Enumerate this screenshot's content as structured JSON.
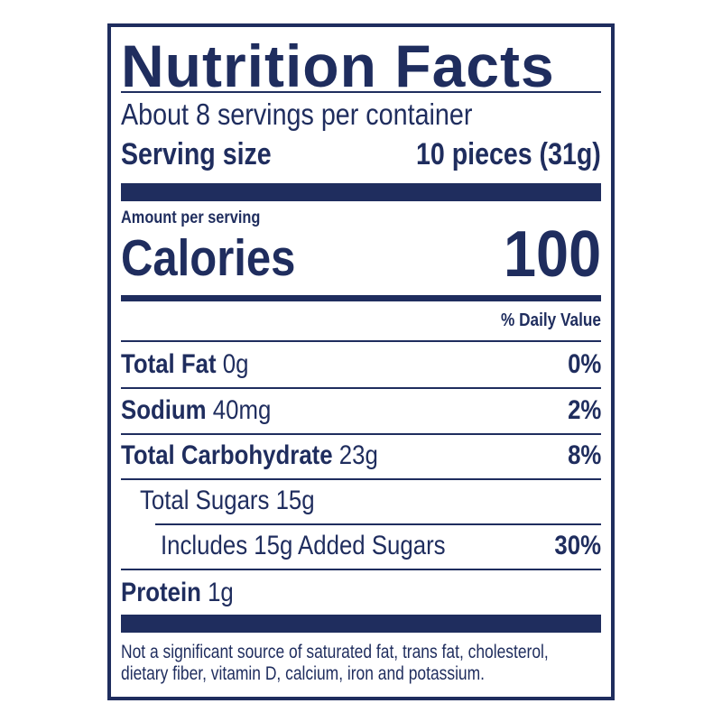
{
  "title": "Nutrition Facts",
  "servings_per_container": "About 8 servings per container",
  "serving_size": {
    "label": "Serving size",
    "value": "10 pieces (31g)"
  },
  "amount_per_serving": "Amount per serving",
  "calories": {
    "label": "Calories",
    "value": "100"
  },
  "daily_value_header": "% Daily Value",
  "nutrients": [
    {
      "name": "Total Fat",
      "amount": "0g",
      "dv": "0%"
    },
    {
      "name": "Sodium",
      "amount": "40mg",
      "dv": "2%"
    },
    {
      "name": "Total Carbohydrate",
      "amount": "23g",
      "dv": "8%"
    },
    {
      "name": "Total Sugars 15g",
      "amount": "",
      "dv": ""
    },
    {
      "name": "Includes 15g Added Sugars",
      "amount": "",
      "dv": "30%"
    },
    {
      "name": "Protein",
      "amount": "1g",
      "dv": ""
    }
  ],
  "footnote_line1": "Not a significant source of  saturated fat, trans fat, cholesterol,",
  "footnote_line2": "dietary fiber, vitamin D, calcium, iron and potassium.",
  "colors": {
    "ink": "#1f2d5e",
    "background": "#ffffff"
  }
}
